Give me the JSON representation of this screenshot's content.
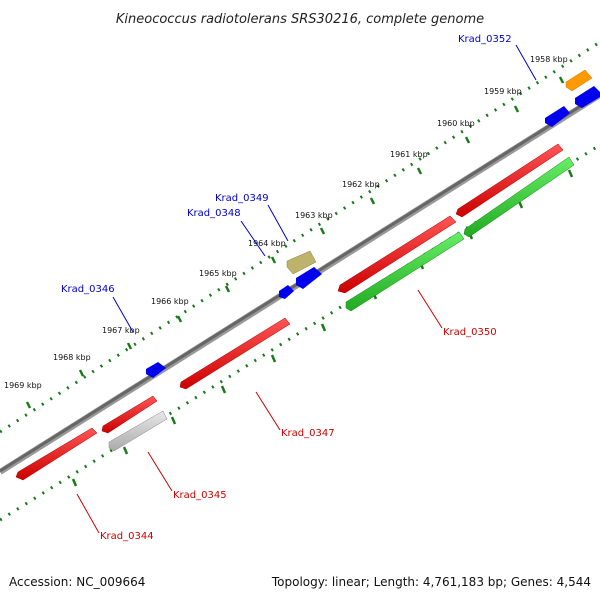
{
  "title": "Kineococcus radiotolerans SRS30216, complete genome",
  "footer": {
    "accession": "Accession: NC_009664",
    "summary": "Topology: linear; Length: 4,761,183 bp; Genes: 4,544"
  },
  "kbp_ticks": [
    "1958 kbp",
    "1959 kbp",
    "1960 kbp",
    "1961 kbp",
    "1962 kbp",
    "1963 kbp",
    "1964 kbp",
    "1965 kbp",
    "1966 kbp",
    "1967 kbp",
    "1968 kbp",
    "1969 kbp"
  ],
  "genes": [
    {
      "id": "Krad_0344",
      "strand": "forward",
      "color": "#ff0000"
    },
    {
      "id": "Krad_0345",
      "strand": "reverse",
      "color": "#c8c8c8"
    },
    {
      "id": "Krad_0345b",
      "strand": "forward",
      "color": "#ff0000"
    },
    {
      "id": "Krad_0346",
      "strand": "forward",
      "color": "#0000ff"
    },
    {
      "id": "Krad_0347",
      "strand": "forward",
      "color": "#ff0000"
    },
    {
      "id": "Krad_0348",
      "strand": "forward",
      "color": "#0000ff"
    },
    {
      "id": "Krad_0349",
      "strand": "forward",
      "color": "#bdb36a"
    },
    {
      "id": "Krad_0350",
      "strand": "forward",
      "color": "#ff0000"
    },
    {
      "id": "Krad_0350b",
      "strand": "reverse",
      "color": "#33cc33"
    },
    {
      "id": "Krad_0352",
      "strand": "forward",
      "color": "#0000ff"
    }
  ],
  "labels": {
    "Krad_0344": "Krad_0344",
    "Krad_0345": "Krad_0345",
    "Krad_0346": "Krad_0346",
    "Krad_0347": "Krad_0347",
    "Krad_0348": "Krad_0348",
    "Krad_0349": "Krad_0349",
    "Krad_0350": "Krad_0350",
    "Krad_0352": "Krad_0352"
  },
  "colors": {
    "forward_label": "#0000cc",
    "reverse_label": "#cc0000",
    "backbone": "#777777",
    "tick_green": "#1a7a1a"
  }
}
